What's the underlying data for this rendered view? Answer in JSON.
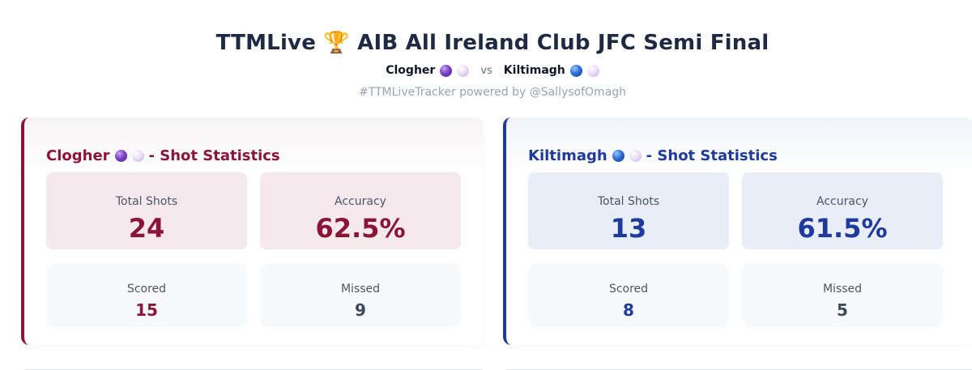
{
  "header": {
    "title": "TTMLive 🏆 AIB All Ireland Club JFC Semi Final",
    "home_team": "Clogher",
    "vs": "vs",
    "away_team": "Kiltimagh",
    "tagline": "#TTMLiveTracker powered by @SallysofOmagh"
  },
  "home": {
    "name": "Clogher",
    "title_suffix": "- Shot Statistics",
    "color": "#8a1538",
    "stats": {
      "total_shots_label": "Total Shots",
      "total_shots": "24",
      "accuracy_label": "Accuracy",
      "accuracy": "62.5%",
      "scored_label": "Scored",
      "scored": "15",
      "missed_label": "Missed",
      "missed": "9"
    }
  },
  "away": {
    "name": "Kiltimagh",
    "title_suffix": "- Shot Statistics",
    "color": "#1e3a9c",
    "stats": {
      "total_shots_label": "Total Shots",
      "total_shots": "13",
      "accuracy_label": "Accuracy",
      "accuracy": "61.5%",
      "scored_label": "Scored",
      "scored": "8",
      "missed_label": "Missed",
      "missed": "5"
    }
  },
  "icons": {
    "home_ball_1": "purple-ball-icon",
    "home_ball_2": "white-ball-icon",
    "away_ball_1": "blue-ball-icon",
    "away_ball_2": "white-ball-icon"
  }
}
